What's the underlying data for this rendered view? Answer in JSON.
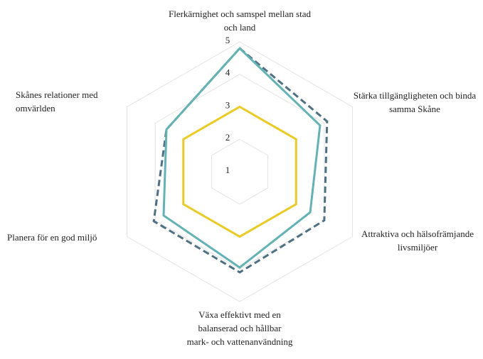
{
  "chart_data": {
    "type": "radar",
    "categories": [
      "Flerkärnighet och samspel mellan stad och land",
      "Stärka tillgängligheten och binda samma Skåne",
      "Attraktiva och hälsofrämjande livsmiljöer",
      "Växa effektivt med en balanserad och hållbar mark- och vattenanvändning",
      "Planera för en god miljö",
      "Skånes relationer med omvärlden"
    ],
    "series": [
      {
        "color": "#ebcb1f",
        "dash": false,
        "values": [
          3,
          3,
          3,
          3,
          3,
          3
        ]
      },
      {
        "color": "#4e7083",
        "dash": true,
        "values": [
          4.8,
          4.1,
          4.0,
          4.1,
          4.05,
          3.6
        ]
      },
      {
        "color": "#62b3b5",
        "dash": false,
        "values": [
          4.8,
          3.85,
          3.5,
          3.95,
          3.7,
          3.6
        ]
      }
    ],
    "ylim": [
      1,
      5
    ],
    "yticks": [
      1,
      2,
      3,
      4,
      5
    ],
    "grid": true
  }
}
